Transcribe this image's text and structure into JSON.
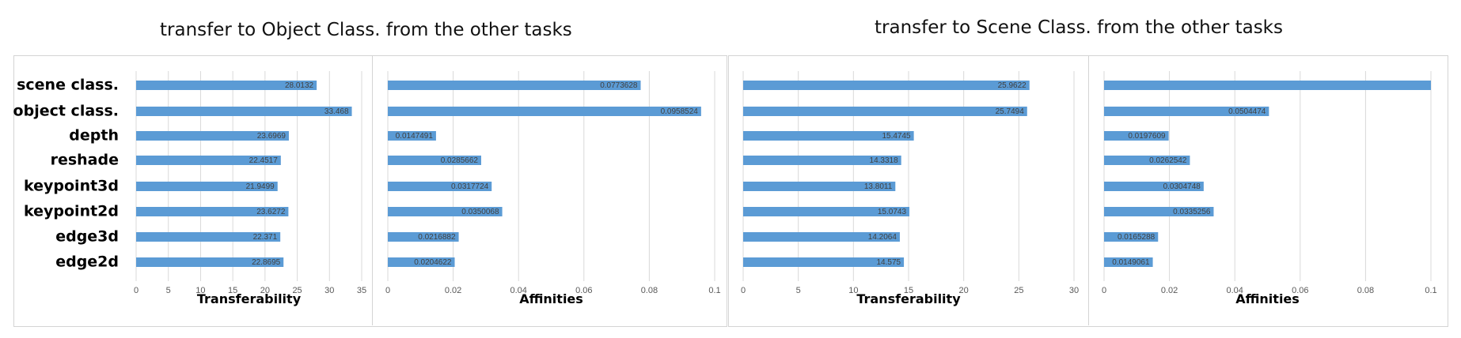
{
  "titles": {
    "left": "transfer to Object Class. from the other tasks",
    "right": "transfer to Scene Class. from the other tasks"
  },
  "colors": {
    "bar": "#5b9bd5",
    "grid": "#d9d9d9",
    "border": "#d4d4d4"
  },
  "chart_data": [
    {
      "type": "bar",
      "orientation": "horizontal",
      "group": "transfer to Object Class. from the other tasks",
      "categories": [
        "scene class.",
        "object class.",
        "depth",
        "reshade",
        "keypoint3d",
        "keypoint2d",
        "edge3d",
        "edge2d"
      ],
      "values": [
        28.0132,
        33.468,
        23.6969,
        22.4517,
        21.9499,
        23.6272,
        22.371,
        22.8695
      ],
      "data_labels": [
        "28.0132",
        "33.468",
        "23.6969",
        "22.4517",
        "21.9499",
        "23.6272",
        "22.371",
        "22.8695"
      ],
      "xlabel": "Transferability",
      "xlim": [
        0,
        35
      ],
      "ticks": [
        "0",
        "5",
        "10",
        "15",
        "20",
        "25",
        "30",
        "35"
      ],
      "grid": true
    },
    {
      "type": "bar",
      "orientation": "horizontal",
      "group": "transfer to Object Class. from the other tasks",
      "categories": [
        "scene class.",
        "object class.",
        "depth",
        "reshade",
        "keypoint3d",
        "keypoint2d",
        "edge3d",
        "edge2d"
      ],
      "values": [
        0.0773628,
        0.0958524,
        0.0147491,
        0.0285662,
        0.0317724,
        0.0350068,
        0.0216882,
        0.0204622
      ],
      "data_labels": [
        "0.0773628",
        "0.0958524",
        "0.0147491",
        "0.0285662",
        "0.0317724",
        "0.0350068",
        "0.0216882",
        "0.0204622"
      ],
      "xlabel": "Affinities",
      "xlim": [
        0,
        0.1
      ],
      "ticks": [
        "0",
        "0.02",
        "0.04",
        "0.06",
        "0.08",
        "0.1"
      ],
      "grid": true
    },
    {
      "type": "bar",
      "orientation": "horizontal",
      "group": "transfer to Scene Class. from the other tasks",
      "categories": [
        "scene class.",
        "object class.",
        "depth",
        "reshade",
        "keypoint3d",
        "keypoint2d",
        "edge3d",
        "edge2d"
      ],
      "values": [
        25.9622,
        25.7494,
        15.4745,
        14.3318,
        13.8011,
        15.0743,
        14.2064,
        14.575
      ],
      "data_labels": [
        "25.9622",
        "25.7494",
        "15.4745",
        "14.3318",
        "13.8011",
        "15.0743",
        "14.2064",
        "14.575"
      ],
      "xlabel": "Transferability",
      "xlim": [
        0,
        30
      ],
      "ticks": [
        "0",
        "5",
        "10",
        "15",
        "20",
        "25",
        "30"
      ],
      "grid": true
    },
    {
      "type": "bar",
      "orientation": "horizontal",
      "group": "transfer to Scene Class. from the other tasks",
      "categories": [
        "scene class.",
        "object class.",
        "depth",
        "reshade",
        "keypoint3d",
        "keypoint2d",
        "edge3d",
        "edge2d"
      ],
      "values": [
        0.1,
        0.0504474,
        0.0197609,
        0.0262542,
        0.0304748,
        0.0335256,
        0.0165288,
        0.0149061
      ],
      "data_labels": [
        "",
        "0.0504474",
        "0.0197609",
        "0.0262542",
        "0.0304748",
        "0.0335256",
        "0.0165288",
        "0.0149061"
      ],
      "xlabel": "Affinities",
      "xlim": [
        0,
        0.1
      ],
      "ticks": [
        "0",
        "0.02",
        "0.04",
        "0.06",
        "0.08",
        "0.1"
      ],
      "grid": true
    }
  ]
}
